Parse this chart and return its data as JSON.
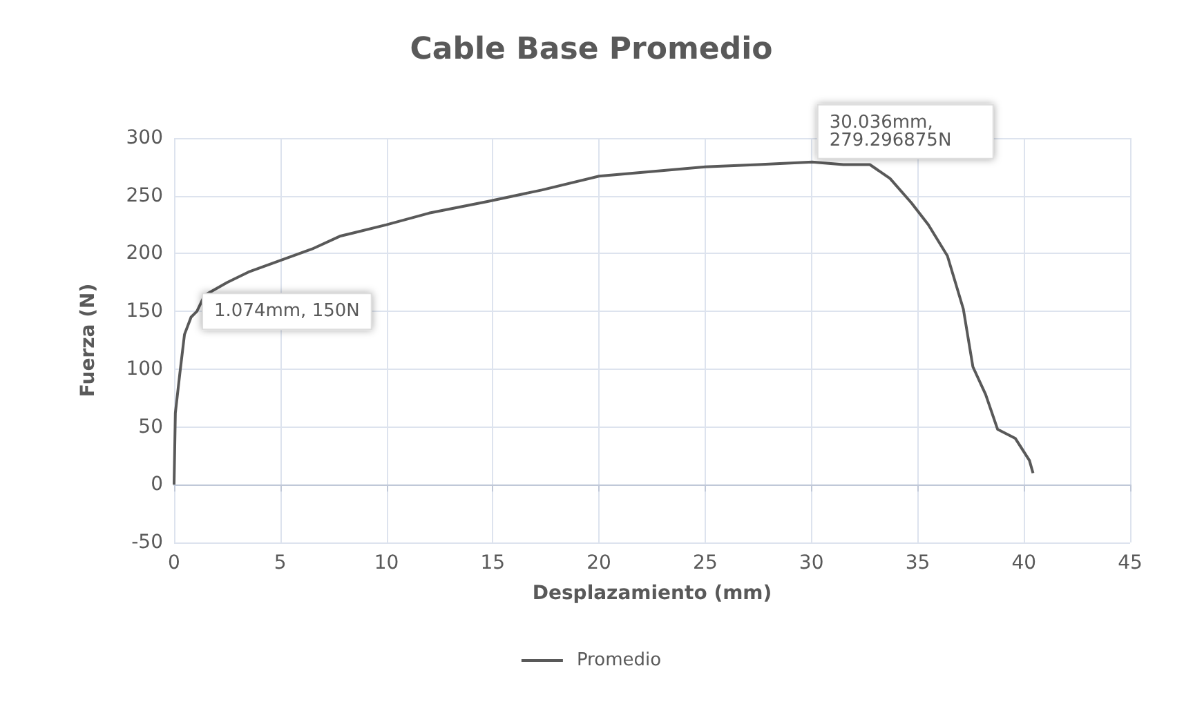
{
  "chart_data": {
    "type": "line",
    "title": "Cable Base Promedio",
    "xlabel": "Desplazamiento (mm)",
    "ylabel": "Fuerza (N)",
    "x": [
      0,
      0.06,
      0.27,
      0.49,
      0.8,
      1.074,
      1.44,
      2.5,
      3.5,
      5,
      6.5,
      7.8,
      10,
      12,
      14.75,
      17.3,
      20,
      22.5,
      25,
      27.5,
      30.036,
      31.5,
      32.75,
      33.7,
      34.7,
      35.5,
      36.4,
      37.15,
      37.6,
      38.2,
      38.76,
      39.6,
      40.26,
      40.43
    ],
    "series": [
      {
        "name": "Promedio",
        "color": "#595959",
        "values": [
          0,
          62,
          96,
          130,
          145,
          150,
          164,
          175,
          184,
          194,
          204,
          215,
          225,
          235,
          245,
          255,
          267,
          271,
          275,
          277,
          279.296875,
          277,
          277,
          265,
          244,
          225,
          198,
          152,
          102,
          78,
          48,
          40,
          21,
          10
        ]
      }
    ],
    "xlim": [
      0,
      45
    ],
    "xticks": [
      0,
      5,
      10,
      15,
      20,
      25,
      30,
      35,
      40,
      45
    ],
    "ylim": [
      -50,
      300
    ],
    "yticks": [
      -50,
      0,
      50,
      100,
      150,
      200,
      250,
      300
    ],
    "grid": true,
    "legend": "bottom",
    "marker": "none",
    "line_style": "solid",
    "annotations": [
      {
        "text": "1.074mm, 150N",
        "x": 1.074,
        "y": 150
      },
      {
        "text": "30.036mm, 279.296875N",
        "x": 30.036,
        "y": 279.296875
      }
    ]
  }
}
